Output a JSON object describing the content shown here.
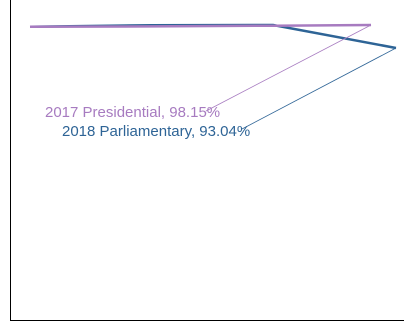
{
  "chart_data": {
    "type": "line",
    "title": "",
    "xlabel": "",
    "ylabel": "",
    "grid": false,
    "series": [
      {
        "name": "2018 Parliamentary",
        "color": "#2e6496",
        "values": [
          0.92,
          0.99,
          1.0,
          0.0
        ],
        "annotation": "2018 Parliamentary, 93.04%"
      },
      {
        "name": "2017 Presidential",
        "color": "#a77bc0",
        "values": [
          0.92,
          0.94,
          0.97,
          1.0
        ],
        "annotation": "2017 Presidential, 98.15%"
      }
    ],
    "labels": {
      "presidential": "2017 Presidential, 98.15%",
      "parliamentary": "2018 Parliamentary, 93.04%"
    }
  }
}
